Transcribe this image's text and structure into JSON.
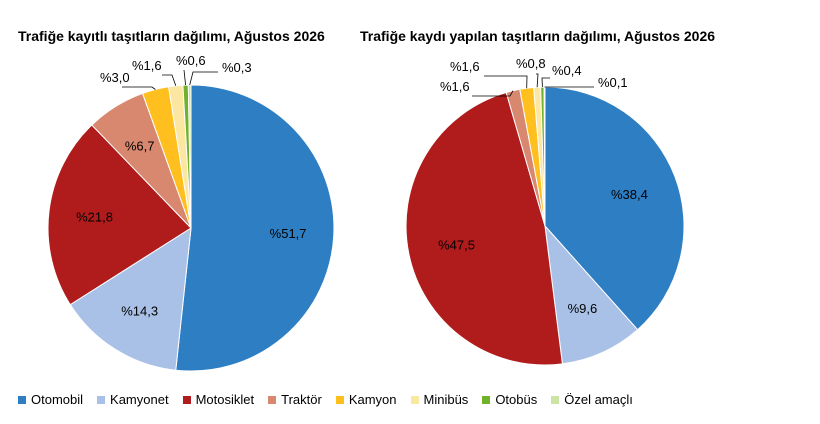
{
  "categories": [
    "Otomobil",
    "Kamyonet",
    "Motosiklet",
    "Traktör",
    "Kamyon",
    "Minibüs",
    "Otobüs",
    "Özel amaçlı"
  ],
  "colors": [
    "#2e7ec3",
    "#a9c1e6",
    "#b01b1c",
    "#d98870",
    "#ffbf1f",
    "#fbe6a2",
    "#70b22c",
    "#cde4a6"
  ],
  "chart_data": [
    {
      "type": "pie",
      "title": "Trafiğe kayıtlı taşıtların dağılımı, Ağustos 2026",
      "categories": [
        "Otomobil",
        "Kamyonet",
        "Motosiklet",
        "Traktör",
        "Kamyon",
        "Minibüs",
        "Otobüs",
        "Özel amaçlı"
      ],
      "values": [
        51.7,
        14.3,
        21.8,
        6.7,
        3.0,
        1.6,
        0.6,
        0.3
      ],
      "labels": [
        "%51,7",
        "%14,3",
        "%21,8",
        "%6,7",
        "%3,0",
        "%1,6",
        "%0,6",
        "%0,3"
      ],
      "legend_position": "bottom"
    },
    {
      "type": "pie",
      "title": "Trafiğe kaydı yapılan taşıtların dağılımı, Ağustos 2026",
      "categories": [
        "Otomobil",
        "Kamyonet",
        "Motosiklet",
        "Traktör",
        "Kamyon",
        "Minibüs",
        "Otobüs",
        "Özel amaçlı"
      ],
      "values": [
        38.4,
        9.6,
        47.5,
        1.6,
        1.6,
        0.8,
        0.4,
        0.1
      ],
      "labels": [
        "%38,4",
        "%9,6",
        "%47,5",
        "%1,6",
        "%1,6",
        "%0,8",
        "%0,4",
        "%0,1"
      ],
      "legend_position": "bottom"
    }
  ]
}
